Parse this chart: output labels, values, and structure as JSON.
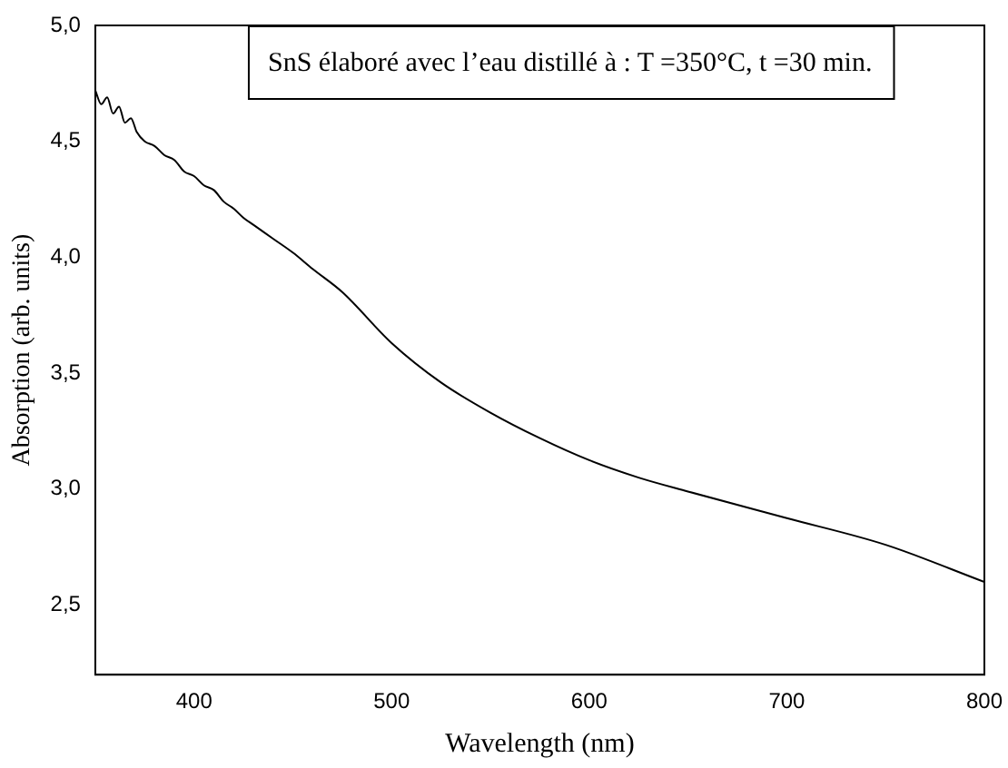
{
  "chart_data": {
    "type": "line",
    "title": "SnS élaboré avec l’eau distillé à : T =350°C, t =30 min.",
    "xlabel": "Wavelength (nm)",
    "ylabel": "Absorption (arb. units)",
    "x": [
      350,
      353,
      356,
      359,
      362,
      365,
      368,
      371,
      375,
      380,
      385,
      390,
      395,
      400,
      405,
      410,
      415,
      420,
      425,
      430,
      440,
      450,
      460,
      475,
      500,
      525,
      550,
      575,
      600,
      625,
      650,
      700,
      750,
      800
    ],
    "series": [
      {
        "color": "#000000",
        "values": [
          4.72,
          4.66,
          4.69,
          4.62,
          4.65,
          4.58,
          4.6,
          4.54,
          4.5,
          4.48,
          4.44,
          4.42,
          4.37,
          4.35,
          4.31,
          4.29,
          4.24,
          4.21,
          4.17,
          4.14,
          4.08,
          4.02,
          3.95,
          3.85,
          3.63,
          3.46,
          3.33,
          3.22,
          3.125,
          3.05,
          2.99,
          2.875,
          2.76,
          2.6
        ]
      }
    ],
    "xlim": [
      350,
      800
    ],
    "xticks": [
      400,
      500,
      600,
      700,
      800
    ],
    "ylim": [
      2.2,
      5.0
    ],
    "yticks": [
      {
        "value": 2.5,
        "label": "2,5"
      },
      {
        "value": 3.0,
        "label": "3,0"
      },
      {
        "value": 3.5,
        "label": "3,5"
      },
      {
        "value": 4.0,
        "label": "4,0"
      },
      {
        "value": 4.5,
        "label": "4,5"
      },
      {
        "value": 5.0,
        "label": "5,0"
      }
    ],
    "grid": false,
    "legend": false,
    "marker": "none",
    "line_style": "solid"
  }
}
